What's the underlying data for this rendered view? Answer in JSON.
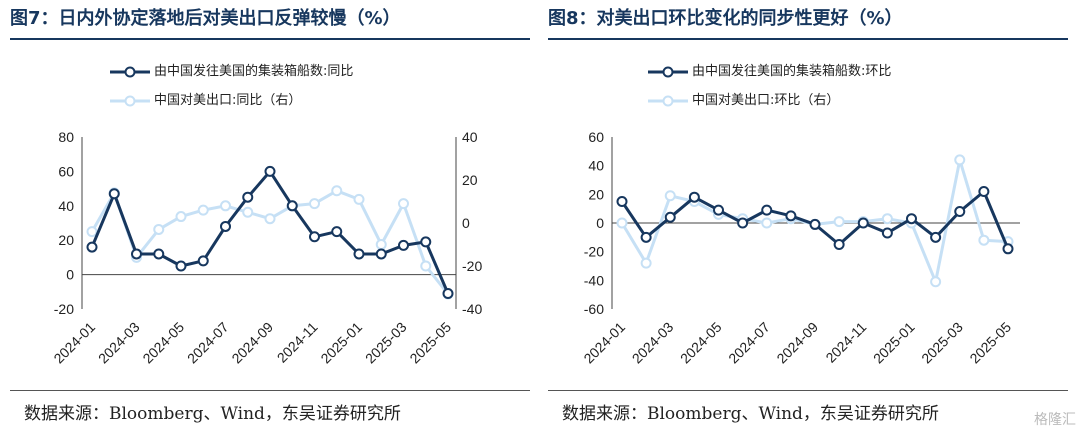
{
  "chart_data": [
    {
      "type": "line",
      "title": "图7：日内外协定落地后对美出口反弹较慢（%）",
      "legend_position": "top-left",
      "x": [
        "2024-01",
        "2024-02",
        "2024-03",
        "2024-04",
        "2024-05",
        "2024-06",
        "2024-07",
        "2024-08",
        "2024-09",
        "2024-10",
        "2024-11",
        "2024-12",
        "2025-01",
        "2025-02",
        "2025-03",
        "2025-04",
        "2025-05"
      ],
      "x_tick_labels": [
        "2024-01",
        "2024-03",
        "2024-05",
        "2024-07",
        "2024-09",
        "2024-11",
        "2025-01",
        "2025-03",
        "2025-05"
      ],
      "y_left": {
        "lim": [
          -20,
          80
        ],
        "ticks": [
          "80",
          "60",
          "40",
          "20",
          "0",
          "-20"
        ]
      },
      "y_right": {
        "lim": [
          -40,
          40
        ],
        "ticks": [
          "40",
          "20",
          "0",
          "-20",
          "-40"
        ]
      },
      "series": [
        {
          "name": "由中国发往美国的集装箱船数:同比",
          "axis": "left",
          "color": "#17375e",
          "marker": "open-circle",
          "values": [
            16,
            47,
            12,
            12,
            5,
            8,
            28,
            45,
            60,
            40,
            22,
            25,
            12,
            12,
            17,
            19,
            -11
          ]
        },
        {
          "name": "中国对美出口:同比（右）",
          "axis": "right",
          "color": "#c6e0f5",
          "marker": "open-circle",
          "values": [
            -4,
            14,
            -16,
            -3,
            3,
            6,
            8,
            5,
            2,
            8,
            9,
            15,
            11,
            -10,
            9,
            -20,
            -33
          ]
        }
      ]
    },
    {
      "type": "line",
      "title": "图8：对美出口环比变化的同步性更好（%）",
      "legend_position": "top-left",
      "x": [
        "2024-01",
        "2024-02",
        "2024-03",
        "2024-04",
        "2024-05",
        "2024-06",
        "2024-07",
        "2024-08",
        "2024-09",
        "2024-10",
        "2024-11",
        "2024-12",
        "2025-01",
        "2025-02",
        "2025-03",
        "2025-04",
        "2025-05"
      ],
      "x_tick_labels": [
        "2024-01",
        "2024-03",
        "2024-05",
        "2024-07",
        "2024-09",
        "2024-11",
        "2025-01",
        "2025-03",
        "2025-05"
      ],
      "y_left": {
        "lim": [
          -60,
          60
        ],
        "ticks": [
          "60",
          "40",
          "20",
          "0",
          "-20",
          "-40",
          "-60"
        ]
      },
      "series": [
        {
          "name": "由中国发往美国的集装箱船数:环比",
          "color": "#17375e",
          "marker": "open-circle",
          "values": [
            15,
            -10,
            4,
            18,
            9,
            0,
            9,
            5,
            -1,
            -15,
            0,
            -7,
            3,
            -10,
            8,
            22,
            -18
          ]
        },
        {
          "name": "中国对美出口:环比（右）",
          "color": "#c6e0f5",
          "marker": "open-circle",
          "values": [
            0,
            -28,
            19,
            15,
            6,
            3,
            0,
            3,
            -1,
            1,
            1,
            3,
            0,
            -41,
            44,
            -12,
            -13
          ]
        }
      ]
    }
  ],
  "source_left": "数据来源：Bloomberg、Wind，东吴证券研究所",
  "source_right": "数据来源：Bloomberg、Wind，东吴证券研究所",
  "watermark": "格隆汇",
  "colors": {
    "dark": "#17375e",
    "light": "#c6e0f5",
    "title": "#17375e"
  }
}
